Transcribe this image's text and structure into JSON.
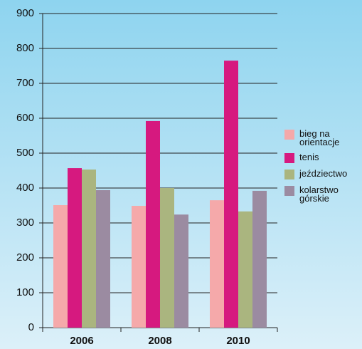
{
  "chart_data": {
    "type": "bar",
    "categories": [
      "2006",
      "2008",
      "2010"
    ],
    "series": [
      {
        "name": "bieg na orientacje",
        "color": "#f5a9aa",
        "values": [
          351,
          349,
          365
        ]
      },
      {
        "name": "tenis",
        "color": "#d6197f",
        "values": [
          457,
          592,
          765
        ]
      },
      {
        "name": "jeździectwo",
        "color": "#aab57f",
        "values": [
          453,
          400,
          333
        ]
      },
      {
        "name": "kolarstwo górskie",
        "color": "#9b8ba1",
        "values": [
          394,
          324,
          392
        ]
      }
    ],
    "ylim": [
      0,
      900
    ],
    "yticks": [
      0,
      100,
      200,
      300,
      400,
      500,
      600,
      700,
      800,
      900
    ],
    "grid": true,
    "legend": "right"
  }
}
